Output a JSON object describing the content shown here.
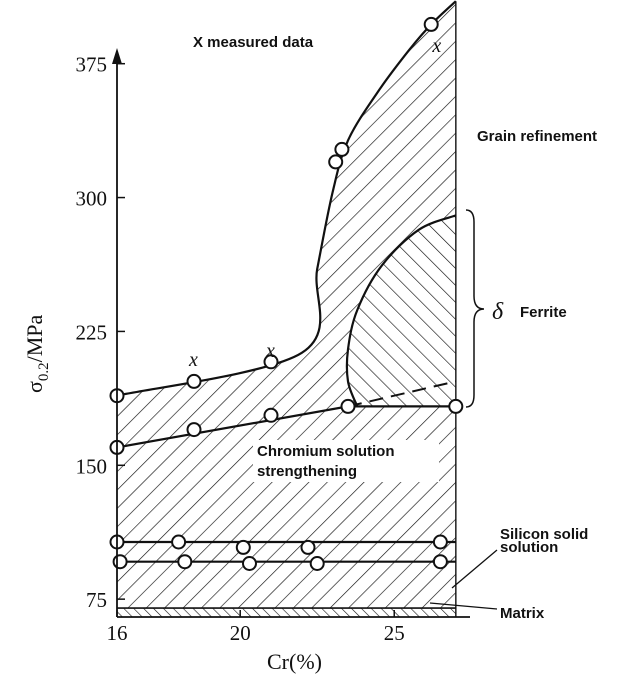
{
  "chart_data": {
    "type": "area",
    "title": "",
    "xlabel": "Cr(%)",
    "ylabel_base": "σ",
    "ylabel_sub": "0.2",
    "ylabel_unit": "/MPa",
    "xlim": [
      16,
      27.2
    ],
    "ylim": [
      65,
      395
    ],
    "x_ticks": [
      16,
      20,
      25
    ],
    "y_ticks": [
      75,
      150,
      225,
      300,
      375
    ],
    "legend_text": "X measured data",
    "measured_marker": "x",
    "regions": [
      {
        "name": "Matrix",
        "hatch": "backslash",
        "lower": 65,
        "upper": 70
      },
      {
        "name": "Silicon solid solution",
        "hatch": "slash",
        "lower": 70,
        "upper": 107
      },
      {
        "name": "Chromium solution strengthening",
        "hatch": "slash",
        "lower": 107,
        "upper_boundary": "chromium-line"
      },
      {
        "name": "Grain refinement",
        "hatch": "slash",
        "lower_boundary": "chromium-line",
        "upper_boundary": "upper-curve"
      },
      {
        "name": "Ferrite",
        "prefix": "δ",
        "hatch": "backslash",
        "lower": 183,
        "upper_boundary": "ferrite-curve"
      }
    ],
    "annotations": {
      "grain": "Grain refinement",
      "ferrite_symbol": "δ",
      "ferrite": "Ferrite",
      "chromium_line1": "Chromium solution",
      "chromium_line2": "strengthening",
      "silicon_line1": "Silicon solid",
      "silicon_line2": "solution",
      "matrix": "Matrix"
    },
    "series": [
      {
        "role": "upper-boundary-points",
        "points": [
          [
            16.0,
            189
          ],
          [
            18.5,
            197
          ],
          [
            21.0,
            208
          ],
          [
            23.1,
            320
          ],
          [
            23.3,
            327
          ],
          [
            26.2,
            397
          ]
        ]
      },
      {
        "role": "chromium-line-points",
        "points": [
          [
            16.0,
            160
          ],
          [
            18.5,
            170
          ],
          [
            21.0,
            178
          ],
          [
            23.5,
            183
          ],
          [
            27.0,
            183
          ]
        ]
      },
      {
        "role": "silicon-upper-points",
        "points": [
          [
            16.0,
            107
          ],
          [
            18.0,
            107
          ],
          [
            20.1,
            104
          ],
          [
            22.2,
            104
          ],
          [
            26.5,
            107
          ]
        ]
      },
      {
        "role": "silicon-lower-points",
        "points": [
          [
            16.1,
            96
          ],
          [
            18.2,
            96
          ],
          [
            20.3,
            95
          ],
          [
            22.5,
            95
          ],
          [
            26.5,
            96
          ]
        ]
      }
    ],
    "measured_x_points": [
      [
        18.5,
        209
      ],
      [
        21.0,
        214
      ],
      [
        26.4,
        385
      ]
    ],
    "curves": {
      "upper": [
        [
          16.0,
          189
        ],
        [
          22.0,
          213
        ],
        [
          22.5,
          260
        ],
        [
          23.0,
          303
        ],
        [
          23.5,
          332
        ],
        [
          24.5,
          360
        ],
        [
          25.5,
          383
        ],
        [
          26.2,
          397
        ],
        [
          27.0,
          410
        ]
      ],
      "ferrite": [
        [
          23.8,
          183
        ],
        [
          23.5,
          197
        ],
        [
          23.5,
          215
        ],
        [
          23.8,
          237
        ],
        [
          24.6,
          262
        ],
        [
          25.8,
          282
        ],
        [
          27.0,
          290
        ]
      ],
      "chromium": [
        [
          16.0,
          160
        ],
        [
          23.5,
          183
        ],
        [
          27.0,
          183
        ]
      ],
      "dashed": [
        [
          23.5,
          183
        ],
        [
          27.0,
          197
        ]
      ],
      "silicon_upper": [
        [
          16.0,
          107
        ],
        [
          27.0,
          107
        ]
      ],
      "silicon_lower": [
        [
          16.0,
          96
        ],
        [
          27.0,
          96
        ]
      ],
      "matrix_top": [
        [
          16.0,
          70
        ],
        [
          27.0,
          70
        ]
      ]
    },
    "grid": false
  }
}
